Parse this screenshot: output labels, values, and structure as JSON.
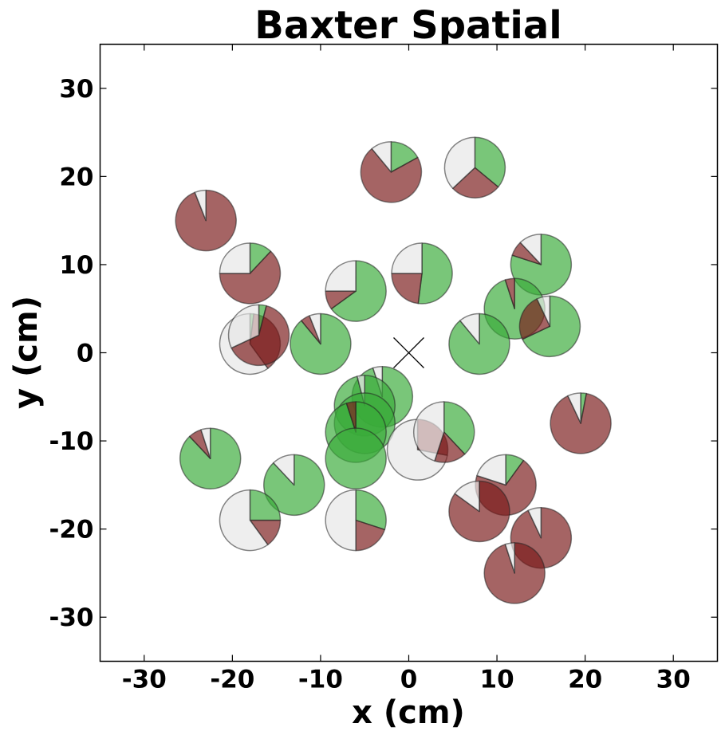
{
  "chart_data": {
    "type": "scatter",
    "marker": "pie",
    "title": "Baxter Spatial",
    "xlabel": "x (cm)",
    "ylabel": "y (cm)",
    "xlim": [
      -35,
      35
    ],
    "ylim": [
      -35,
      35
    ],
    "xticks": [
      -30,
      -20,
      -10,
      0,
      10,
      20,
      30
    ],
    "yticks": [
      -30,
      -20,
      -10,
      0,
      10,
      20,
      30
    ],
    "grid": false,
    "origin_marker": "x",
    "slice_order": [
      "green",
      "red",
      "gray"
    ],
    "colors": {
      "green": "#3aab3a",
      "red": "#7a1a1a",
      "gray": "#e6e6e6"
    },
    "points": [
      {
        "x": -23,
        "y": 15,
        "green": 0,
        "red": 0.94,
        "gray": 0.06
      },
      {
        "x": -2,
        "y": 20.5,
        "green": 0.17,
        "red": 0.72,
        "gray": 0.11
      },
      {
        "x": 7.5,
        "y": 21,
        "green": 0.36,
        "red": 0.27,
        "gray": 0.37
      },
      {
        "x": -18,
        "y": 9,
        "green": 0.12,
        "red": 0.63,
        "gray": 0.25
      },
      {
        "x": -6,
        "y": 7,
        "green": 0.65,
        "red": 0.1,
        "gray": 0.25
      },
      {
        "x": 1.5,
        "y": 9,
        "green": 0.52,
        "red": 0.23,
        "gray": 0.25
      },
      {
        "x": 15,
        "y": 10,
        "green": 0.8,
        "red": 0.08,
        "gray": 0.12
      },
      {
        "x": -18,
        "y": 1,
        "green": 0.02,
        "red": 0.38,
        "gray": 0.6
      },
      {
        "x": -17,
        "y": 2,
        "green": 0.04,
        "red": 0.64,
        "gray": 0.32
      },
      {
        "x": -10,
        "y": 1,
        "green": 0.89,
        "red": 0.05,
        "gray": 0.06
      },
      {
        "x": 12,
        "y": 5,
        "green": 0.95,
        "red": 0.05,
        "gray": 0
      },
      {
        "x": 16,
        "y": 3,
        "green": 0.68,
        "red": 0.25,
        "gray": 0.07
      },
      {
        "x": 8,
        "y": 1,
        "green": 0.89,
        "red": 0,
        "gray": 0.11
      },
      {
        "x": -3,
        "y": -5,
        "green": 0.95,
        "red": 0,
        "gray": 0.05
      },
      {
        "x": -5,
        "y": -6,
        "green": 0.96,
        "red": 0,
        "gray": 0.04
      },
      {
        "x": -5,
        "y": -8,
        "green": 1.0,
        "red": 0,
        "gray": 0
      },
      {
        "x": -6,
        "y": -9,
        "green": 0.95,
        "red": 0.05,
        "gray": 0
      },
      {
        "x": -6,
        "y": -12,
        "green": 1.0,
        "red": 0,
        "gray": 0
      },
      {
        "x": 1,
        "y": -11,
        "green": 0,
        "red": 0.28,
        "gray": 0.72
      },
      {
        "x": 4,
        "y": -9,
        "green": 0.38,
        "red": 0.17,
        "gray": 0.45
      },
      {
        "x": 19.5,
        "y": -8,
        "green": 0.03,
        "red": 0.9,
        "gray": 0.07
      },
      {
        "x": -22.5,
        "y": -12,
        "green": 0.88,
        "red": 0.07,
        "gray": 0.05
      },
      {
        "x": -13,
        "y": -15,
        "green": 0.88,
        "red": 0,
        "gray": 0.12
      },
      {
        "x": -18,
        "y": -19,
        "green": 0.25,
        "red": 0.15,
        "gray": 0.6
      },
      {
        "x": -6,
        "y": -19,
        "green": 0.3,
        "red": 0.2,
        "gray": 0.5
      },
      {
        "x": 11,
        "y": -15,
        "green": 0.1,
        "red": 0.7,
        "gray": 0.2
      },
      {
        "x": 8,
        "y": -18,
        "green": 0,
        "red": 0.85,
        "gray": 0.15
      },
      {
        "x": 15,
        "y": -21,
        "green": 0,
        "red": 0.93,
        "gray": 0.07
      },
      {
        "x": 12,
        "y": -25,
        "green": 0,
        "red": 0.95,
        "gray": 0.05
      }
    ]
  }
}
